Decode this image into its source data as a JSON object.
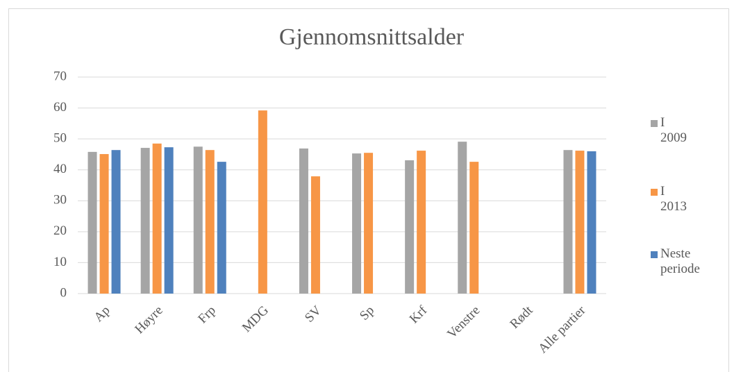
{
  "chart_data": {
    "type": "bar",
    "title": "Gjennomsnittsalder",
    "categories": [
      "Ap",
      "Høyre",
      "Frp",
      "MDG",
      "SV",
      "Sp",
      "Krf",
      "Venstre",
      "Rødt",
      "Alle partier"
    ],
    "series": [
      {
        "name": "I 2009",
        "color": "#a5a5a5",
        "values": [
          45.8,
          47.1,
          47.5,
          null,
          46.9,
          45.3,
          43.1,
          49.1,
          null,
          46.4
        ]
      },
      {
        "name": "I 2013",
        "color": "#f79646",
        "values": [
          45.1,
          48.5,
          46.4,
          59.2,
          37.9,
          45.5,
          46.2,
          42.6,
          null,
          46.2
        ]
      },
      {
        "name": "Neste periode",
        "color": "#4f81bd",
        "values": [
          46.4,
          47.3,
          42.6,
          null,
          null,
          null,
          null,
          null,
          null,
          46.0
        ]
      }
    ],
    "ylim": [
      0,
      70
    ],
    "yticks": [
      0,
      10,
      20,
      30,
      40,
      50,
      60,
      70
    ],
    "grid": true,
    "legend": "right"
  }
}
